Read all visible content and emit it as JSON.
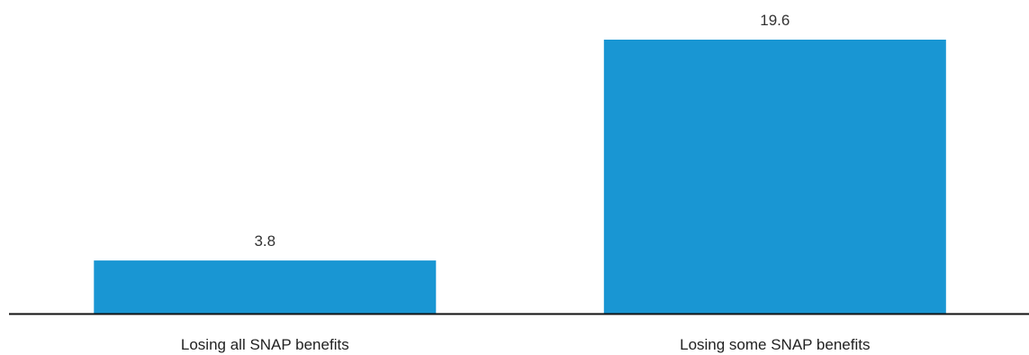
{
  "chart_data": {
    "type": "bar",
    "categories": [
      "Losing all SNAP benefits",
      "Losing some SNAP benefits"
    ],
    "values": [
      3.8,
      19.6
    ],
    "value_labels": [
      "3.8",
      "19.6"
    ],
    "title": "",
    "xlabel": "",
    "ylabel": "",
    "ylim": [
      0,
      19.6
    ],
    "grid": false,
    "legend": "none",
    "bar_color": "#1996d3",
    "axis_color": "#111111"
  }
}
